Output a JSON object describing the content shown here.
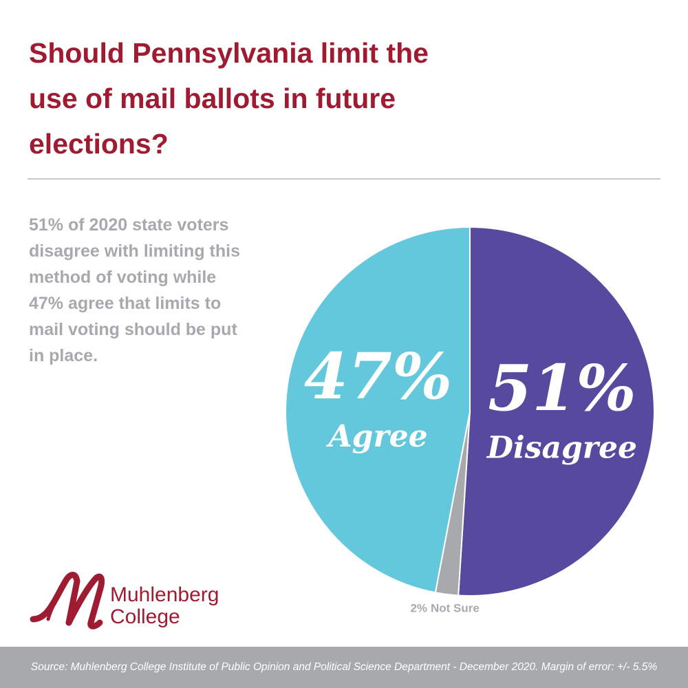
{
  "chart_data": {
    "type": "pie",
    "title": "Should Pennsylvania limit the use of mail ballots in future elections?",
    "subtitle": "51% of 2020 state voters disagree with limiting this method of voting while 47% agree that limits to mail voting should be put in place.",
    "categories": [
      "Disagree",
      "Not Sure",
      "Agree"
    ],
    "values": [
      51,
      2,
      47
    ],
    "value_labels": [
      "51%",
      "2%",
      "47%"
    ],
    "colors": [
      "#574a9e",
      "#a7a9ac",
      "#63c8db"
    ],
    "source": "Source: Muhlenberg College Institute of Public Opinion and Political Science Department - December 2020. Margin of error: +/- 5.5%"
  },
  "logo": {
    "lines": [
      "Muhlenberg",
      "College"
    ]
  }
}
